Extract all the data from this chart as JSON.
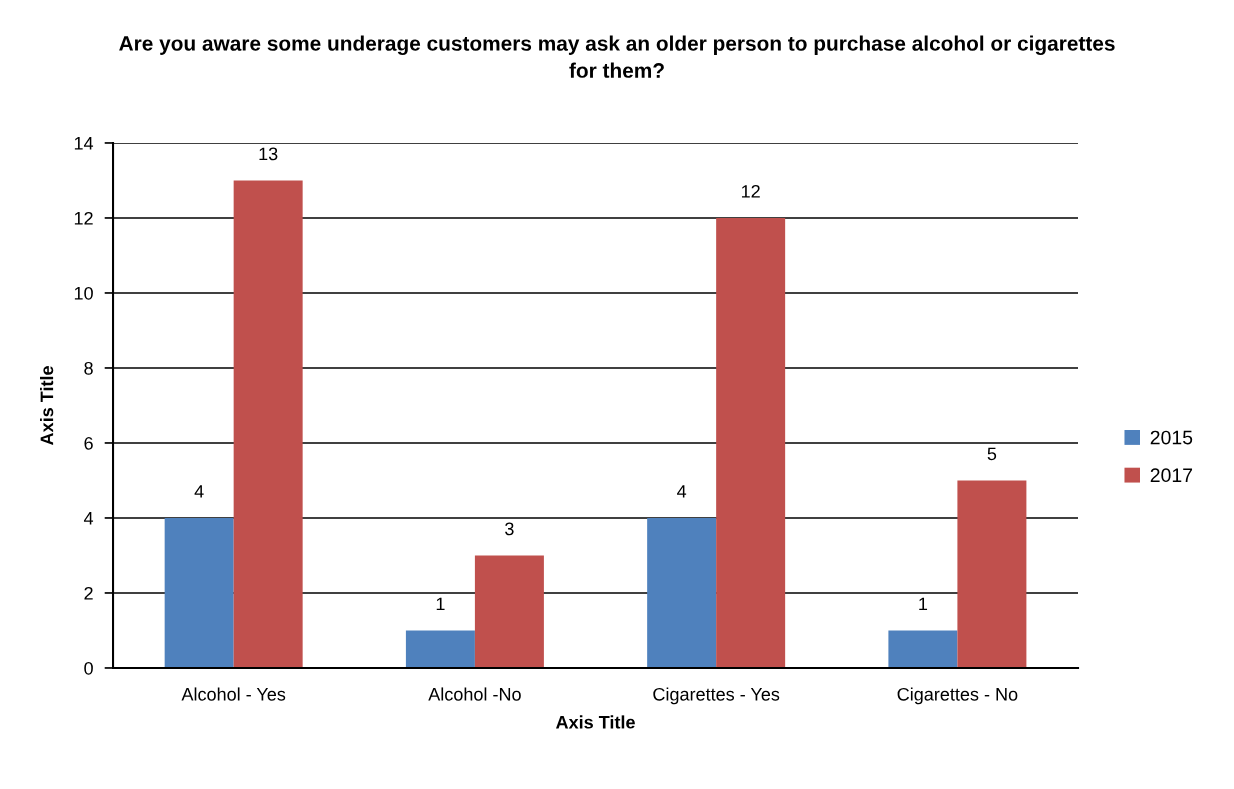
{
  "chart_data": {
    "type": "bar",
    "title": "Are you aware some underage customers may ask an older person to purchase alcohol or cigarettes for them?",
    "xlabel": "Axis Title",
    "ylabel": "Axis Title",
    "categories": [
      "Alcohol - Yes",
      "Alcohol -No",
      "Cigarettes - Yes",
      "Cigarettes - No"
    ],
    "series": [
      {
        "name": "2015",
        "color": "#4f81bd",
        "values": [
          4,
          1,
          4,
          1
        ]
      },
      {
        "name": "2017",
        "color": "#c0504d",
        "values": [
          13,
          3,
          12,
          5
        ]
      }
    ],
    "ylim": [
      0,
      14
    ],
    "yticks": [
      0,
      2,
      4,
      6,
      8,
      10,
      12,
      14
    ],
    "grid": "y",
    "legend": "right",
    "data_labels": true
  }
}
